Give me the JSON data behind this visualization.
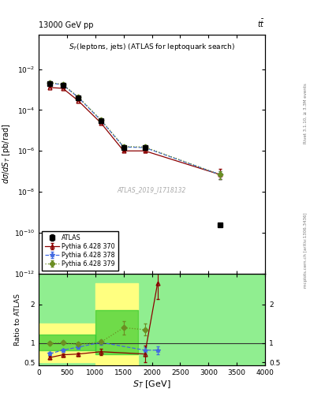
{
  "title_top": "13000 GeV pp",
  "title_right": "tt̅",
  "plot_title": "S_{T}(leptons, jets) (ATLAS for leptoquark search)",
  "xlabel": "S_{T} [GeV]",
  "ylabel_main": "dσ/dS_{T} [pb/rad]",
  "ylabel_ratio": "Ratio to ATLAS",
  "watermark": "ATLAS_2019_I1718132",
  "right_label": "mcplots.cern.ch [arXiv:1306.3436]",
  "rivet_label": "Rivet 3.1.10, ≥ 3.3M events",
  "atlas_x": [
    200,
    425,
    700,
    1100,
    1500,
    1875,
    3200
  ],
  "atlas_y": [
    0.002,
    0.0016,
    0.0004,
    3e-05,
    1.5e-06,
    1.5e-06,
    2.5e-10
  ],
  "atlas_yerr_lo": [
    0.00015,
    0.0001,
    2.5e-05,
    2e-06,
    2e-07,
    3e-07,
    5e-11
  ],
  "atlas_yerr_hi": [
    0.00015,
    0.0001,
    2.5e-05,
    2e-06,
    2e-07,
    3e-07,
    5e-11
  ],
  "py370_x": [
    200,
    425,
    700,
    1100,
    1500,
    1875,
    3200
  ],
  "py370_y": [
    0.00125,
    0.00115,
    0.00028,
    2.3e-05,
    1e-06,
    1e-06,
    7e-08
  ],
  "py370_yerr_lo": [
    3e-05,
    3e-05,
    8e-06,
    8e-07,
    8e-08,
    1.5e-07,
    3e-08
  ],
  "py370_yerr_hi": [
    3e-05,
    3e-05,
    8e-06,
    8e-07,
    8e-08,
    1.5e-07,
    6e-08
  ],
  "py378_x": [
    200,
    425,
    700,
    1100,
    1500,
    1875,
    3200
  ],
  "py378_y": [
    0.0021,
    0.0017,
    0.00041,
    3.1e-05,
    1.55e-06,
    1.45e-06,
    7e-08
  ],
  "py378_yerr_lo": [
    3e-05,
    3e-05,
    8e-06,
    8e-07,
    8e-08,
    1.5e-07,
    3e-08
  ],
  "py378_yerr_hi": [
    3e-05,
    3e-05,
    8e-06,
    8e-07,
    8e-08,
    1.5e-07,
    3e-08
  ],
  "py379_x": [
    200,
    425,
    700,
    1100,
    1500,
    1875,
    3200
  ],
  "py379_y": [
    0.0022,
    0.0018,
    0.00043,
    3.3e-05,
    1.65e-06,
    1.55e-06,
    7e-08
  ],
  "py379_yerr_lo": [
    3e-05,
    3e-05,
    8e-06,
    8e-07,
    8e-08,
    1.5e-07,
    3e-08
  ],
  "py379_yerr_hi": [
    3e-05,
    3e-05,
    8e-06,
    8e-07,
    8e-08,
    1.5e-07,
    3e-08
  ],
  "ratio_py370_x": [
    200,
    425,
    700,
    1100,
    1875,
    2100
  ],
  "ratio_py370_y": [
    0.63,
    0.7,
    0.72,
    0.78,
    0.72,
    2.55
  ],
  "ratio_py370_yerr_lo": [
    0.04,
    0.04,
    0.04,
    0.08,
    0.22,
    0.4
  ],
  "ratio_py370_yerr_hi": [
    0.04,
    0.04,
    0.04,
    0.08,
    0.22,
    0.4
  ],
  "ratio_py378_x": [
    200,
    425,
    700,
    1100,
    1875,
    2100
  ],
  "ratio_py378_y": [
    0.73,
    0.82,
    0.9,
    1.02,
    0.82,
    0.82
  ],
  "ratio_py378_yerr": [
    0.04,
    0.04,
    0.04,
    0.06,
    0.08,
    0.1
  ],
  "ratio_py379_x": [
    200,
    425,
    700,
    1100,
    1500,
    1875
  ],
  "ratio_py379_y": [
    1.0,
    1.01,
    0.97,
    1.03,
    1.4,
    1.35
  ],
  "ratio_py379_yerr": [
    0.04,
    0.04,
    0.04,
    0.06,
    0.18,
    0.15
  ],
  "ylim_main": [
    1e-12,
    0.5
  ],
  "ylim_ratio": [
    0.42,
    2.8
  ],
  "xlim": [
    0,
    4000
  ],
  "color_atlas": "#000000",
  "color_py370": "#8b0000",
  "color_py378": "#4169e1",
  "color_py379": "#6b8e23",
  "color_green_band": "#90ee90",
  "color_yellow_band": "#ffff80",
  "color_inner_green": "#32cd32"
}
